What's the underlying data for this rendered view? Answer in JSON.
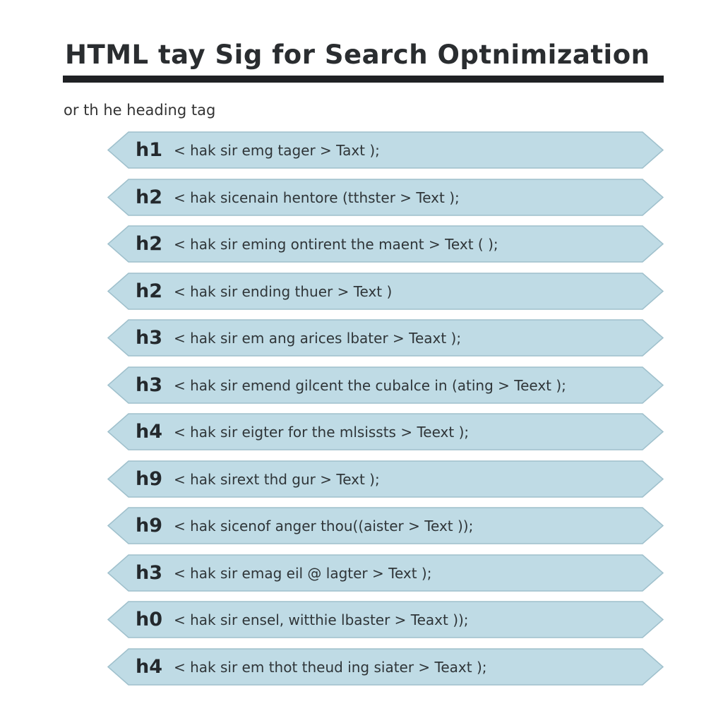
{
  "title": "HTML tay Sig for Search Optnimization",
  "subtitle": "or th he heading tag",
  "colors": {
    "ribbon_fill": "#bfdbe5",
    "ribbon_stroke": "#9fc0cc",
    "rule": "#1f2124"
  },
  "rows": [
    {
      "tag": "h1",
      "code": "< hak sir emg tager > Taxt );"
    },
    {
      "tag": "h2",
      "code": "< hak sicenain hentore (tthster > Text );"
    },
    {
      "tag": "h2",
      "code": "< hak sir eming ontirent the maent > Text ( );"
    },
    {
      "tag": "h2",
      "code": "< hak sir ending thuer > Text )"
    },
    {
      "tag": "h3",
      "code": "< hak sir em ang arices lbater > Teaxt );"
    },
    {
      "tag": "h3",
      "code": "< hak sir emend gilcent the cubalce in (ating > Teext );"
    },
    {
      "tag": "h4",
      "code": "< hak sir eigter for the mlsissts > Teext );"
    },
    {
      "tag": "h9",
      "code": "< hak sirext thd gur > Text );"
    },
    {
      "tag": "h9",
      "code": "< hak sicenof anger thou((aister > Text ));"
    },
    {
      "tag": "h3",
      "code": "< hak sir emag eil @ lagter > Text );"
    },
    {
      "tag": "h0",
      "code": "< hak sir ensel, witthie lbaster > Teaxt ));"
    },
    {
      "tag": "h4",
      "code": "< hak sir em thot theud ing siater > Teaxt );"
    }
  ]
}
